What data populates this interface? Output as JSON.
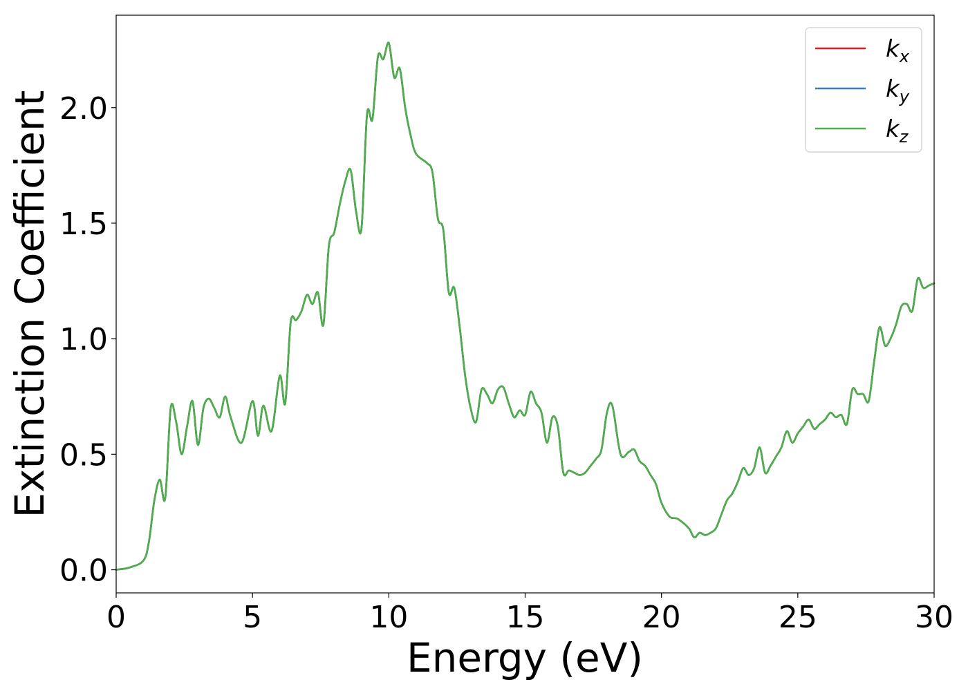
{
  "chart_data": {
    "type": "line",
    "xlabel": "Energy (eV)",
    "ylabel": "Extinction Coefficient",
    "xlim": [
      0,
      30
    ],
    "ylim": [
      -0.1,
      2.4
    ],
    "xticks": [
      0,
      5,
      10,
      15,
      20,
      25,
      30
    ],
    "xtick_labels": [
      "0",
      "5",
      "10",
      "15",
      "20",
      "25",
      "30"
    ],
    "yticks": [
      0.0,
      0.5,
      1.0,
      1.5,
      2.0
    ],
    "ytick_labels": [
      "0.0",
      "0.5",
      "1.0",
      "1.5",
      "2.0"
    ],
    "grid": false,
    "legend_position": "top-right",
    "x": [
      0,
      0.5,
      1.0,
      1.2,
      1.4,
      1.6,
      1.8,
      2.0,
      2.2,
      2.4,
      2.6,
      2.8,
      3.0,
      3.2,
      3.4,
      3.6,
      3.8,
      4.0,
      4.2,
      4.6,
      5.0,
      5.2,
      5.4,
      5.7,
      6.0,
      6.2,
      6.4,
      6.6,
      6.8,
      7.0,
      7.2,
      7.4,
      7.6,
      7.8,
      8.0,
      8.2,
      8.4,
      8.6,
      8.8,
      9.0,
      9.2,
      9.4,
      9.6,
      9.8,
      10.0,
      10.2,
      10.4,
      10.6,
      10.8,
      11.0,
      11.4,
      11.6,
      11.8,
      12.0,
      12.2,
      12.4,
      12.6,
      12.8,
      13.0,
      13.2,
      13.4,
      13.6,
      13.8,
      14.0,
      14.2,
      14.4,
      14.6,
      14.8,
      15.0,
      15.2,
      15.4,
      15.6,
      15.8,
      16.0,
      16.2,
      16.4,
      16.6,
      16.8,
      17.0,
      17.2,
      17.4,
      17.6,
      17.8,
      18.0,
      18.2,
      18.5,
      18.8,
      19.0,
      19.2,
      19.4,
      19.6,
      19.8,
      20.0,
      20.3,
      20.6,
      21.0,
      21.2,
      21.4,
      21.6,
      21.8,
      22.0,
      22.2,
      22.4,
      22.6,
      22.8,
      23.0,
      23.2,
      23.4,
      23.6,
      23.8,
      24.0,
      24.2,
      24.4,
      24.6,
      24.8,
      25.0,
      25.2,
      25.4,
      25.6,
      25.8,
      26.0,
      26.2,
      26.4,
      26.6,
      26.8,
      27.0,
      27.2,
      27.4,
      27.6,
      27.8,
      28.0,
      28.2,
      28.4,
      28.6,
      28.8,
      29.0,
      29.2,
      29.4,
      29.6,
      29.8,
      30.0
    ],
    "series": [
      {
        "name": "k_x",
        "label_base": "k",
        "label_sub": "x",
        "color": "#e41a1c",
        "values": [
          0.0,
          0.01,
          0.04,
          0.12,
          0.3,
          0.39,
          0.31,
          0.7,
          0.64,
          0.5,
          0.62,
          0.73,
          0.54,
          0.7,
          0.74,
          0.7,
          0.66,
          0.75,
          0.66,
          0.55,
          0.73,
          0.58,
          0.71,
          0.6,
          0.84,
          0.72,
          1.07,
          1.08,
          1.12,
          1.19,
          1.15,
          1.2,
          1.06,
          1.4,
          1.46,
          1.58,
          1.68,
          1.73,
          1.55,
          1.48,
          1.97,
          1.95,
          2.22,
          2.21,
          2.28,
          2.13,
          2.17,
          2.0,
          1.88,
          1.8,
          1.76,
          1.72,
          1.52,
          1.47,
          1.2,
          1.22,
          1.05,
          0.84,
          0.7,
          0.64,
          0.78,
          0.76,
          0.72,
          0.78,
          0.79,
          0.72,
          0.66,
          0.69,
          0.67,
          0.77,
          0.72,
          0.68,
          0.55,
          0.66,
          0.62,
          0.42,
          0.43,
          0.42,
          0.41,
          0.42,
          0.45,
          0.48,
          0.52,
          0.68,
          0.71,
          0.5,
          0.51,
          0.52,
          0.47,
          0.45,
          0.41,
          0.37,
          0.29,
          0.23,
          0.22,
          0.18,
          0.14,
          0.16,
          0.15,
          0.16,
          0.18,
          0.24,
          0.3,
          0.33,
          0.38,
          0.44,
          0.41,
          0.44,
          0.53,
          0.42,
          0.45,
          0.49,
          0.53,
          0.6,
          0.55,
          0.59,
          0.62,
          0.65,
          0.61,
          0.63,
          0.65,
          0.68,
          0.66,
          0.67,
          0.63,
          0.78,
          0.76,
          0.76,
          0.73,
          0.9,
          1.05,
          0.97,
          1.0,
          1.06,
          1.14,
          1.15,
          1.12,
          1.26,
          1.22,
          1.23,
          1.24
        ]
      },
      {
        "name": "k_y",
        "label_base": "k",
        "label_sub": "y",
        "color": "#377eb8",
        "values": [
          0.0,
          0.01,
          0.04,
          0.12,
          0.3,
          0.39,
          0.31,
          0.7,
          0.64,
          0.5,
          0.62,
          0.73,
          0.54,
          0.7,
          0.74,
          0.7,
          0.66,
          0.75,
          0.66,
          0.55,
          0.73,
          0.58,
          0.71,
          0.6,
          0.84,
          0.72,
          1.07,
          1.08,
          1.12,
          1.19,
          1.15,
          1.2,
          1.06,
          1.4,
          1.46,
          1.58,
          1.68,
          1.73,
          1.55,
          1.48,
          1.97,
          1.95,
          2.22,
          2.21,
          2.28,
          2.13,
          2.17,
          2.0,
          1.88,
          1.8,
          1.76,
          1.72,
          1.52,
          1.47,
          1.2,
          1.22,
          1.05,
          0.84,
          0.7,
          0.64,
          0.78,
          0.76,
          0.72,
          0.78,
          0.79,
          0.72,
          0.66,
          0.69,
          0.67,
          0.77,
          0.72,
          0.68,
          0.55,
          0.66,
          0.62,
          0.42,
          0.43,
          0.42,
          0.41,
          0.42,
          0.45,
          0.48,
          0.52,
          0.68,
          0.71,
          0.5,
          0.51,
          0.52,
          0.47,
          0.45,
          0.41,
          0.37,
          0.29,
          0.23,
          0.22,
          0.18,
          0.14,
          0.16,
          0.15,
          0.16,
          0.18,
          0.24,
          0.3,
          0.33,
          0.38,
          0.44,
          0.41,
          0.44,
          0.53,
          0.42,
          0.45,
          0.49,
          0.53,
          0.6,
          0.55,
          0.59,
          0.62,
          0.65,
          0.61,
          0.63,
          0.65,
          0.68,
          0.66,
          0.67,
          0.63,
          0.78,
          0.76,
          0.76,
          0.73,
          0.9,
          1.05,
          0.97,
          1.0,
          1.06,
          1.14,
          1.15,
          1.12,
          1.26,
          1.22,
          1.23,
          1.24
        ]
      },
      {
        "name": "k_z",
        "label_base": "k",
        "label_sub": "z",
        "color": "#4daf4a",
        "values": [
          0.0,
          0.01,
          0.04,
          0.12,
          0.3,
          0.39,
          0.31,
          0.7,
          0.64,
          0.5,
          0.62,
          0.73,
          0.54,
          0.7,
          0.74,
          0.7,
          0.66,
          0.75,
          0.66,
          0.55,
          0.73,
          0.58,
          0.71,
          0.6,
          0.84,
          0.72,
          1.07,
          1.08,
          1.12,
          1.19,
          1.15,
          1.2,
          1.06,
          1.4,
          1.46,
          1.58,
          1.68,
          1.73,
          1.55,
          1.48,
          1.97,
          1.95,
          2.22,
          2.21,
          2.28,
          2.13,
          2.17,
          2.0,
          1.88,
          1.8,
          1.76,
          1.72,
          1.52,
          1.47,
          1.2,
          1.22,
          1.05,
          0.84,
          0.7,
          0.64,
          0.78,
          0.76,
          0.72,
          0.78,
          0.79,
          0.72,
          0.66,
          0.69,
          0.67,
          0.77,
          0.72,
          0.68,
          0.55,
          0.66,
          0.62,
          0.42,
          0.43,
          0.42,
          0.41,
          0.42,
          0.45,
          0.48,
          0.52,
          0.68,
          0.71,
          0.5,
          0.51,
          0.52,
          0.47,
          0.45,
          0.41,
          0.37,
          0.29,
          0.23,
          0.22,
          0.18,
          0.14,
          0.16,
          0.15,
          0.16,
          0.18,
          0.24,
          0.3,
          0.33,
          0.38,
          0.44,
          0.41,
          0.44,
          0.53,
          0.42,
          0.45,
          0.49,
          0.53,
          0.6,
          0.55,
          0.59,
          0.62,
          0.65,
          0.61,
          0.63,
          0.65,
          0.68,
          0.66,
          0.67,
          0.63,
          0.78,
          0.76,
          0.76,
          0.73,
          0.9,
          1.05,
          0.97,
          1.0,
          1.06,
          1.14,
          1.15,
          1.12,
          1.26,
          1.22,
          1.23,
          1.24
        ]
      }
    ]
  }
}
